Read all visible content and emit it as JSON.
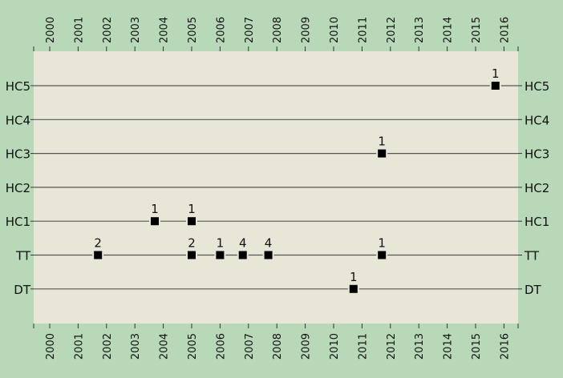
{
  "chart_data": {
    "type": "scatter",
    "x_ticks": [
      "2000",
      "2001",
      "2002",
      "2003",
      "2004",
      "2005",
      "2006",
      "2007",
      "2008",
      "2009",
      "2010",
      "2011",
      "2012",
      "2013",
      "2014",
      "2015",
      "2016"
    ],
    "xlim": [
      2000,
      2016
    ],
    "categories": [
      "HC5",
      "HC4",
      "HC3",
      "HC2",
      "HC1",
      "TT",
      "DT"
    ],
    "points": [
      {
        "category": "HC5",
        "x": 2015.7,
        "label": "1"
      },
      {
        "category": "HC3",
        "x": 2011.7,
        "label": "1"
      },
      {
        "category": "HC1",
        "x": 2003.7,
        "label": "1"
      },
      {
        "category": "HC1",
        "x": 2005.0,
        "label": "1"
      },
      {
        "category": "TT",
        "x": 2001.7,
        "label": "2"
      },
      {
        "category": "TT",
        "x": 2005.0,
        "label": "2"
      },
      {
        "category": "TT",
        "x": 2006.0,
        "label": "1"
      },
      {
        "category": "TT",
        "x": 2006.8,
        "label": "4"
      },
      {
        "category": "TT",
        "x": 2007.7,
        "label": "4"
      },
      {
        "category": "TT",
        "x": 2011.7,
        "label": "1"
      },
      {
        "category": "DT",
        "x": 2010.7,
        "label": "1"
      }
    ],
    "grid": false,
    "colors": {
      "outer_background": "#b8d9b8",
      "plot_background": "#e8e6d6",
      "line": "#555555",
      "marker": "#000000"
    }
  }
}
